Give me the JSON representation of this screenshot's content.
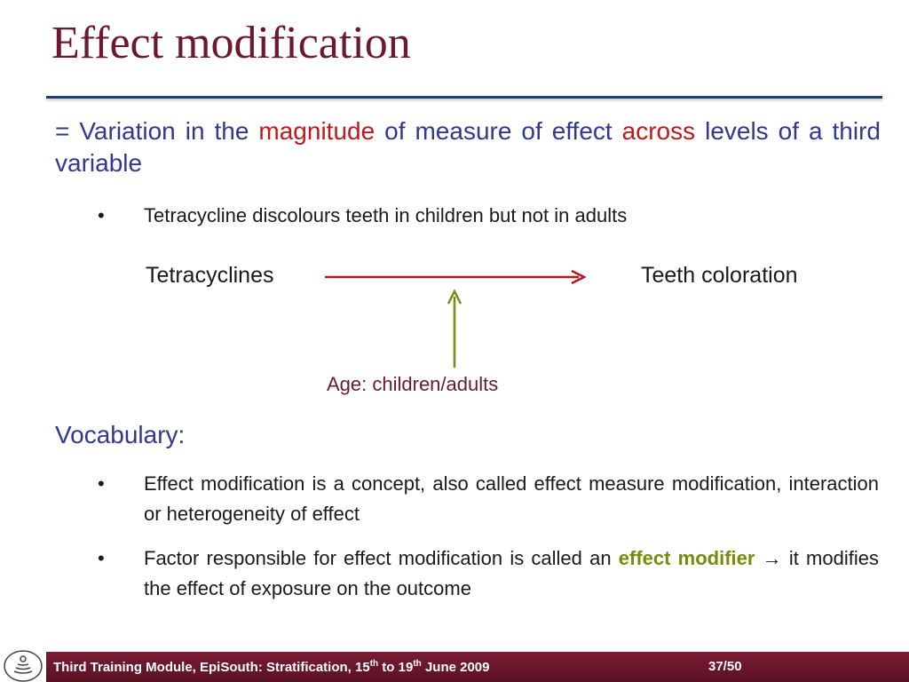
{
  "slide": {
    "title": "Effect modification",
    "definition": {
      "prefix": "= Variation in the ",
      "hl1": "magnitude",
      "middle": " of measure of effect ",
      "hl2": "across",
      "suffix": " levels of a third variable"
    },
    "bullet_example": "Tetracycline discolours teeth in children but not in adults",
    "diagram": {
      "exposure": "Tetracyclines",
      "outcome": "Teeth coloration",
      "modifier": "Age: children/adults"
    },
    "vocab_heading": "Vocabulary:",
    "vocab_bullets": [
      {
        "text": "Effect modification is a concept, also called effect measure modification, interaction or heterogeneity of effect"
      },
      {
        "before": "Factor responsible for effect modification is called an ",
        "highlight": "effect modifier",
        "arrow": "→",
        "after": " it modifies the effect of exposure on the outcome"
      }
    ],
    "bullet_symbol": "•"
  },
  "footer": {
    "text_part1": "Third Training Module, EpiSouth: Stratification, ",
    "day1": "15",
    "sup1": "th",
    "to": " to ",
    "day2": "19",
    "sup2": "th",
    "text_part2": " June 2009",
    "page": "37/50"
  },
  "colors": {
    "title": "#6b1a2e",
    "definition": "#2f3a8f",
    "highlight_red": "#c0181b",
    "highlight_green": "#7a8a0a",
    "arrow_red": "#b3161c",
    "arrow_olive": "#7a8a14",
    "footer_bg": "#6b1a2e"
  }
}
